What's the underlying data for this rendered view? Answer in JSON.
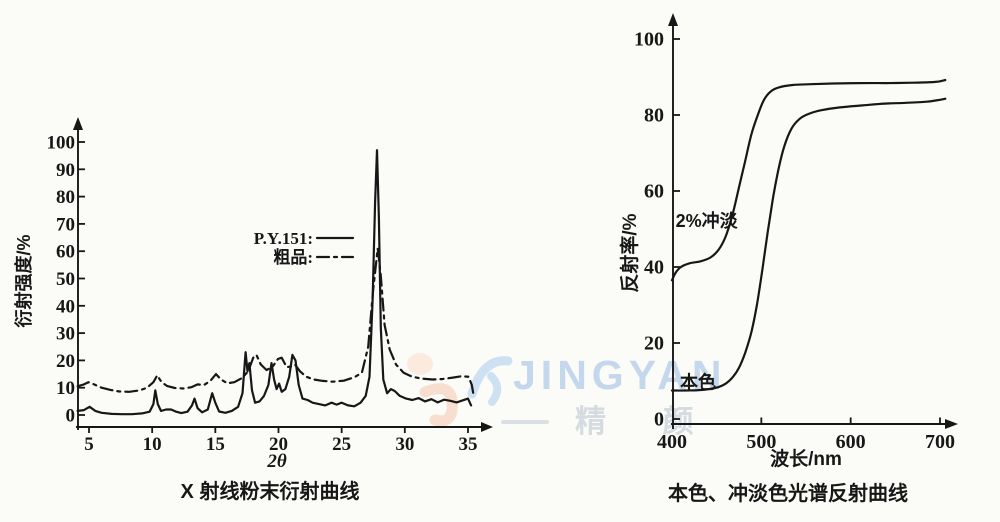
{
  "watermark": {
    "brand_text": "JINGYAN",
    "brand_cn": "精 颜",
    "colors": {
      "text_blue": "rgba(141,180,226,0.50)",
      "cn_gray": "rgba(165,180,198,0.45)",
      "dash_gray": "rgba(170,182,196,0.40)",
      "swoosh_pink": "rgba(246,198,172,0.55)",
      "swoosh_peach": "rgba(250,222,200,0.55)",
      "swoosh_blue": "rgba(150,192,235,0.45)"
    }
  },
  "chart_data": [
    {
      "id": "xrd",
      "type": "line",
      "title": "X 射线粉末衍射曲线",
      "xlabel": "2θ",
      "ylabel": "衍射强度/%",
      "x_axis": {
        "min": 5,
        "max": 35,
        "ticks": [
          5,
          10,
          15,
          20,
          25,
          30,
          35
        ]
      },
      "y_axis": {
        "min": 0,
        "max": 100,
        "ticks": [
          0,
          10,
          20,
          30,
          40,
          50,
          60,
          70,
          80,
          90,
          100
        ]
      },
      "grid": false,
      "legend": [
        {
          "label": "P.Y.151:",
          "style": "solid"
        },
        {
          "label": "粗品:",
          "style": "dashdot"
        }
      ],
      "series": [
        {
          "name": "P.Y.151",
          "style": "solid",
          "smooth": false,
          "points": [
            [
              4.1,
              1.5
            ],
            [
              4.6,
              1.8
            ],
            [
              5.05,
              3
            ],
            [
              5.5,
              1.5
            ],
            [
              6,
              0.8
            ],
            [
              6.8,
              0.4
            ],
            [
              7.6,
              0.3
            ],
            [
              8.4,
              0.3
            ],
            [
              9.2,
              0.6
            ],
            [
              9.8,
              1.2
            ],
            [
              10.1,
              4
            ],
            [
              10.25,
              9
            ],
            [
              10.45,
              4
            ],
            [
              10.7,
              1.5
            ],
            [
              11.1,
              2
            ],
            [
              11.5,
              2
            ],
            [
              11.9,
              1.2
            ],
            [
              12.3,
              0.7
            ],
            [
              12.8,
              1.2
            ],
            [
              13.15,
              3.5
            ],
            [
              13.35,
              6
            ],
            [
              13.6,
              2.5
            ],
            [
              13.95,
              1
            ],
            [
              14.4,
              2
            ],
            [
              14.75,
              8
            ],
            [
              15,
              4.5
            ],
            [
              15.3,
              1.3
            ],
            [
              15.8,
              0.8
            ],
            [
              16.3,
              1.5
            ],
            [
              16.8,
              3
            ],
            [
              17.15,
              8
            ],
            [
              17.4,
              23
            ],
            [
              17.55,
              16
            ],
            [
              17.7,
              19
            ],
            [
              17.9,
              9
            ],
            [
              18.15,
              4.5
            ],
            [
              18.5,
              5
            ],
            [
              18.85,
              7
            ],
            [
              19.2,
              11
            ],
            [
              19.45,
              19
            ],
            [
              19.65,
              13
            ],
            [
              19.85,
              9.5
            ],
            [
              20.05,
              11.5
            ],
            [
              20.25,
              8.5
            ],
            [
              20.55,
              9.5
            ],
            [
              20.85,
              14
            ],
            [
              21.1,
              22
            ],
            [
              21.35,
              20
            ],
            [
              21.6,
              11
            ],
            [
              21.9,
              6
            ],
            [
              22.3,
              5.5
            ],
            [
              22.7,
              4.5
            ],
            [
              23.2,
              4
            ],
            [
              23.7,
              3.5
            ],
            [
              24.2,
              4.5
            ],
            [
              24.6,
              3.8
            ],
            [
              25,
              4.5
            ],
            [
              25.5,
              3.5
            ],
            [
              26,
              3.2
            ],
            [
              26.5,
              4.5
            ],
            [
              26.9,
              7
            ],
            [
              27.2,
              14
            ],
            [
              27.45,
              42
            ],
            [
              27.65,
              78
            ],
            [
              27.8,
              97
            ],
            [
              27.95,
              72
            ],
            [
              28.1,
              32
            ],
            [
              28.3,
              13
            ],
            [
              28.6,
              8
            ],
            [
              28.9,
              9.5
            ],
            [
              29.2,
              8.8
            ],
            [
              29.6,
              7
            ],
            [
              30.1,
              6
            ],
            [
              30.6,
              5.5
            ],
            [
              31.1,
              6.2
            ],
            [
              31.6,
              5
            ],
            [
              32.1,
              5.8
            ],
            [
              32.6,
              4.6
            ],
            [
              33.1,
              5.6
            ],
            [
              33.6,
              5.2
            ],
            [
              34.1,
              4.6
            ],
            [
              34.6,
              5.4
            ],
            [
              35,
              6
            ],
            [
              35.25,
              3.5
            ]
          ]
        },
        {
          "name": "粗品",
          "style": "dashdot",
          "smooth": false,
          "points": [
            [
              4.1,
              10.5
            ],
            [
              4.6,
              11.2
            ],
            [
              4.95,
              12
            ],
            [
              5.4,
              11.2
            ],
            [
              6,
              10
            ],
            [
              6.7,
              9.2
            ],
            [
              7.4,
              8.6
            ],
            [
              8.2,
              8.5
            ],
            [
              9,
              9
            ],
            [
              9.6,
              10
            ],
            [
              10.1,
              12
            ],
            [
              10.4,
              14.5
            ],
            [
              10.75,
              12
            ],
            [
              11.2,
              10.6
            ],
            [
              11.8,
              9.9
            ],
            [
              12.5,
              9.7
            ],
            [
              13.1,
              10.2
            ],
            [
              13.6,
              11.2
            ],
            [
              14.1,
              11
            ],
            [
              14.6,
              12.5
            ],
            [
              15.05,
              15
            ],
            [
              15.45,
              13
            ],
            [
              15.95,
              11.6
            ],
            [
              16.5,
              12
            ],
            [
              17.1,
              13.5
            ],
            [
              17.6,
              16
            ],
            [
              18,
              21
            ],
            [
              18.25,
              22
            ],
            [
              18.6,
              18.5
            ],
            [
              19.05,
              16.5
            ],
            [
              19.5,
              17.5
            ],
            [
              19.95,
              20.5
            ],
            [
              20.25,
              21
            ],
            [
              20.65,
              17.5
            ],
            [
              21,
              17.8
            ],
            [
              21.3,
              18.5
            ],
            [
              21.7,
              16
            ],
            [
              22.2,
              14
            ],
            [
              22.8,
              13
            ],
            [
              23.5,
              12.5
            ],
            [
              24.3,
              12.2
            ],
            [
              25.2,
              12.6
            ],
            [
              26,
              13.8
            ],
            [
              26.6,
              15.5
            ],
            [
              27.1,
              25
            ],
            [
              27.5,
              46
            ],
            [
              27.85,
              61
            ],
            [
              28.1,
              51
            ],
            [
              28.4,
              33
            ],
            [
              28.8,
              24
            ],
            [
              29.3,
              18.5
            ],
            [
              29.9,
              15.5
            ],
            [
              30.6,
              14
            ],
            [
              31.4,
              13.3
            ],
            [
              32.2,
              13
            ],
            [
              33,
              13.2
            ],
            [
              33.8,
              13.7
            ],
            [
              34.5,
              14.2
            ],
            [
              35.05,
              14
            ],
            [
              35.3,
              11
            ],
            [
              35.45,
              7
            ]
          ]
        }
      ]
    },
    {
      "id": "reflectance",
      "type": "line",
      "title": "本色、冲淡色光谱反射曲线",
      "xlabel": "波长/nm",
      "ylabel": "反射率/%",
      "x_axis": {
        "min": 400,
        "max": 700,
        "ticks": [
          400,
          500,
          600,
          700
        ]
      },
      "y_axis": {
        "min": 0,
        "max": 100,
        "ticks": [
          0,
          20,
          40,
          60,
          80,
          100
        ]
      },
      "grid": false,
      "series": [
        {
          "name": "2%冲淡",
          "style": "solid",
          "smooth": true,
          "annotation": {
            "text": "2%冲淡",
            "x": 404,
            "y": 50.5
          },
          "points": [
            [
              400,
              36.5
            ],
            [
              404,
              38.5
            ],
            [
              410,
              40
            ],
            [
              420,
              41
            ],
            [
              432,
              41.5
            ],
            [
              443,
              42.5
            ],
            [
              452,
              44.5
            ],
            [
              460,
              48
            ],
            [
              468,
              54
            ],
            [
              475,
              61
            ],
            [
              482,
              68
            ],
            [
              489,
              75
            ],
            [
              496,
              80
            ],
            [
              503,
              84
            ],
            [
              511,
              86.3
            ],
            [
              520,
              87.3
            ],
            [
              535,
              87.9
            ],
            [
              555,
              88.1
            ],
            [
              580,
              88.3
            ],
            [
              610,
              88.4
            ],
            [
              640,
              88.4
            ],
            [
              670,
              88.5
            ],
            [
              695,
              88.7
            ],
            [
              706,
              89.2
            ]
          ]
        },
        {
          "name": "本色",
          "style": "solid",
          "smooth": true,
          "annotation": {
            "text": "本色",
            "x": 409,
            "y": 8
          },
          "points": [
            [
              400,
              7.5
            ],
            [
              415,
              7.5
            ],
            [
              430,
              7.6
            ],
            [
              442,
              7.9
            ],
            [
              452,
              8.4
            ],
            [
              460,
              9.3
            ],
            [
              468,
              11
            ],
            [
              475,
              13.5
            ],
            [
              482,
              17.5
            ],
            [
              489,
              23
            ],
            [
              495,
              30
            ],
            [
              501,
              39
            ],
            [
              507,
              49
            ],
            [
              513,
              58
            ],
            [
              519,
              65.5
            ],
            [
              526,
              72
            ],
            [
              534,
              76.5
            ],
            [
              543,
              79
            ],
            [
              553,
              80.3
            ],
            [
              568,
              81.3
            ],
            [
              588,
              82
            ],
            [
              612,
              82.5
            ],
            [
              638,
              83
            ],
            [
              662,
              83.2
            ],
            [
              685,
              83.5
            ],
            [
              700,
              84
            ],
            [
              706,
              84.3
            ]
          ]
        }
      ]
    }
  ]
}
